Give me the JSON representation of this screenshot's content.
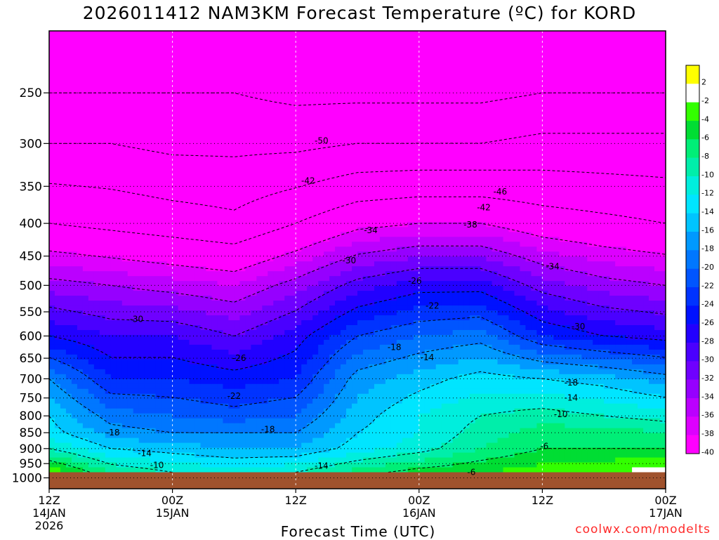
{
  "chart_data": {
    "type": "heatmap",
    "title": "2026011412 NAM3KM Forecast Temperature (ºC) for KORD",
    "xlabel": "Forecast Time (UTC)",
    "ylabel": "",
    "y_scale": "log-pressure",
    "y_ticks": [
      "250",
      "300",
      "350",
      "400",
      "450",
      "500",
      "550",
      "600",
      "650",
      "700",
      "750",
      "800",
      "850",
      "900",
      "950",
      "1000"
    ],
    "ylim": [
      1040,
      200
    ],
    "x_ticks": [
      {
        "hour": 0,
        "label": "12Z",
        "sub": "14JAN",
        "year": "2026"
      },
      {
        "hour": 12,
        "label": "00Z",
        "sub": "15JAN",
        "year": ""
      },
      {
        "hour": 24,
        "label": "12Z",
        "sub": "",
        "year": ""
      },
      {
        "hour": 36,
        "label": "00Z",
        "sub": "16JAN",
        "year": ""
      },
      {
        "hour": 48,
        "label": "12Z",
        "sub": "",
        "year": ""
      },
      {
        "hour": 60,
        "label": "00Z",
        "sub": "17JAN",
        "year": ""
      }
    ],
    "xlim": [
      0,
      60
    ],
    "ground_pressure": 980,
    "grid": true,
    "colorbar": {
      "labels": [
        "2",
        "-2",
        "-4",
        "-6",
        "-8",
        "-10",
        "-12",
        "-14",
        "-16",
        "-18",
        "-20",
        "-22",
        "-24",
        "-26",
        "-28",
        "-30",
        "-32",
        "-34",
        "-36",
        "-38",
        "-40"
      ],
      "colors": [
        "#ffff00",
        "#ffffff",
        "#33ff00",
        "#00dd33",
        "#00ee77",
        "#00eeaa",
        "#00eedd",
        "#00e5ff",
        "#00c4ff",
        "#0099ff",
        "#0077ff",
        "#0055ff",
        "#0033ff",
        "#0011ff",
        "#2200ff",
        "#4a00ff",
        "#6f00ff",
        "#9600ff",
        "#bb00ff",
        "#dd00ff",
        "#ff00ff"
      ]
    },
    "temperature_profiles": [
      {
        "hour": 0,
        "levels": [
          [
            980,
            -2
          ],
          [
            900,
            -10
          ],
          [
            850,
            -13
          ],
          [
            800,
            -14
          ],
          [
            700,
            -18
          ],
          [
            600,
            -26
          ],
          [
            500,
            -33
          ],
          [
            400,
            -42
          ],
          [
            300,
            -50
          ],
          [
            250,
            -54
          ]
        ]
      },
      {
        "hour": 6,
        "levels": [
          [
            980,
            -8
          ],
          [
            900,
            -14
          ],
          [
            850,
            -17
          ],
          [
            800,
            -19
          ],
          [
            700,
            -24
          ],
          [
            600,
            -28
          ],
          [
            500,
            -34
          ],
          [
            400,
            -43
          ],
          [
            300,
            -50
          ],
          [
            250,
            -54
          ]
        ]
      },
      {
        "hour": 12,
        "levels": [
          [
            980,
            -10
          ],
          [
            900,
            -15
          ],
          [
            850,
            -18
          ],
          [
            800,
            -20
          ],
          [
            700,
            -24
          ],
          [
            600,
            -28
          ],
          [
            500,
            -35
          ],
          [
            400,
            -44
          ],
          [
            300,
            -51
          ],
          [
            250,
            -54
          ]
        ]
      },
      {
        "hour": 18,
        "levels": [
          [
            980,
            -11
          ],
          [
            900,
            -16
          ],
          [
            850,
            -18
          ],
          [
            800,
            -21
          ],
          [
            700,
            -25
          ],
          [
            600,
            -30
          ],
          [
            500,
            -36
          ],
          [
            400,
            -45
          ],
          [
            300,
            -51
          ],
          [
            250,
            -54
          ]
        ]
      },
      {
        "hour": 24,
        "levels": [
          [
            980,
            -10
          ],
          [
            900,
            -16
          ],
          [
            850,
            -18
          ],
          [
            800,
            -20
          ],
          [
            700,
            -24
          ],
          [
            600,
            -27
          ],
          [
            500,
            -33
          ],
          [
            400,
            -42
          ],
          [
            300,
            -51
          ],
          [
            250,
            -55
          ]
        ]
      },
      {
        "hour": 30,
        "levels": [
          [
            980,
            -7
          ],
          [
            900,
            -13
          ],
          [
            850,
            -14
          ],
          [
            800,
            -15
          ],
          [
            700,
            -17
          ],
          [
            600,
            -22
          ],
          [
            500,
            -29
          ],
          [
            400,
            -39
          ],
          [
            300,
            -50
          ],
          [
            250,
            -55
          ]
        ]
      },
      {
        "hour": 36,
        "levels": [
          [
            980,
            -5
          ],
          [
            900,
            -11
          ],
          [
            850,
            -12
          ],
          [
            800,
            -12
          ],
          [
            700,
            -15
          ],
          [
            600,
            -20
          ],
          [
            500,
            -27
          ],
          [
            400,
            -38
          ],
          [
            300,
            -50
          ],
          [
            250,
            -55
          ]
        ]
      },
      {
        "hour": 42,
        "levels": [
          [
            980,
            -4
          ],
          [
            900,
            -8
          ],
          [
            850,
            -9
          ],
          [
            800,
            -10
          ],
          [
            700,
            -13
          ],
          [
            600,
            -19
          ],
          [
            500,
            -27
          ],
          [
            400,
            -38
          ],
          [
            300,
            -50
          ],
          [
            250,
            -55
          ]
        ]
      },
      {
        "hour": 48,
        "levels": [
          [
            980,
            -3
          ],
          [
            900,
            -6
          ],
          [
            850,
            -7
          ],
          [
            800,
            -9
          ],
          [
            700,
            -14
          ],
          [
            600,
            -24
          ],
          [
            500,
            -31
          ],
          [
            400,
            -40
          ],
          [
            300,
            -49
          ],
          [
            250,
            -54
          ]
        ]
      },
      {
        "hour": 54,
        "levels": [
          [
            980,
            -2
          ],
          [
            900,
            -6
          ],
          [
            850,
            -7
          ],
          [
            800,
            -10
          ],
          [
            700,
            -15
          ],
          [
            600,
            -26
          ],
          [
            500,
            -33
          ],
          [
            400,
            -41
          ],
          [
            300,
            -49
          ],
          [
            250,
            -54
          ]
        ]
      },
      {
        "hour": 60,
        "levels": [
          [
            980,
            -1
          ],
          [
            900,
            -6
          ],
          [
            850,
            -8
          ],
          [
            800,
            -11
          ],
          [
            700,
            -17
          ],
          [
            600,
            -27
          ],
          [
            500,
            -34
          ],
          [
            400,
            -42
          ],
          [
            300,
            -49
          ],
          [
            250,
            -54
          ]
        ]
      }
    ],
    "contour_labels": [
      {
        "text": "-50",
        "hour": 26.5,
        "pressure": 297
      },
      {
        "text": "-42",
        "hour": 25.2,
        "pressure": 343
      },
      {
        "text": "-46",
        "hour": 43.9,
        "pressure": 357
      },
      {
        "text": "-42",
        "hour": 42.3,
        "pressure": 378
      },
      {
        "text": "-38",
        "hour": 41.0,
        "pressure": 402
      },
      {
        "text": "-34",
        "hour": 31.3,
        "pressure": 410
      },
      {
        "text": "-30",
        "hour": 29.2,
        "pressure": 457
      },
      {
        "text": "-34",
        "hour": 49.0,
        "pressure": 467
      },
      {
        "text": "-26",
        "hour": 35.6,
        "pressure": 492
      },
      {
        "text": "-22",
        "hour": 37.3,
        "pressure": 538
      },
      {
        "text": "-30",
        "hour": 8.5,
        "pressure": 565
      },
      {
        "text": "-30",
        "hour": 51.5,
        "pressure": 580
      },
      {
        "text": "-18",
        "hour": 33.6,
        "pressure": 625
      },
      {
        "text": "-14",
        "hour": 36.8,
        "pressure": 648
      },
      {
        "text": "-26",
        "hour": 18.5,
        "pressure": 650
      },
      {
        "text": "-18",
        "hour": 50.8,
        "pressure": 710
      },
      {
        "text": "-22",
        "hour": 18.0,
        "pressure": 745
      },
      {
        "text": "-14",
        "hour": 50.8,
        "pressure": 750
      },
      {
        "text": "-10",
        "hour": 49.8,
        "pressure": 795
      },
      {
        "text": "-18",
        "hour": 6.2,
        "pressure": 850
      },
      {
        "text": "-18",
        "hour": 21.3,
        "pressure": 840
      },
      {
        "text": "-6",
        "hour": 48.2,
        "pressure": 892
      },
      {
        "text": "-14",
        "hour": 9.3,
        "pressure": 915
      },
      {
        "text": "-10",
        "hour": 10.5,
        "pressure": 955
      },
      {
        "text": "-14",
        "hour": 26.5,
        "pressure": 958
      },
      {
        "text": "-6",
        "hour": 41.1,
        "pressure": 980
      }
    ]
  },
  "credit": "coolwx.com/modelts"
}
